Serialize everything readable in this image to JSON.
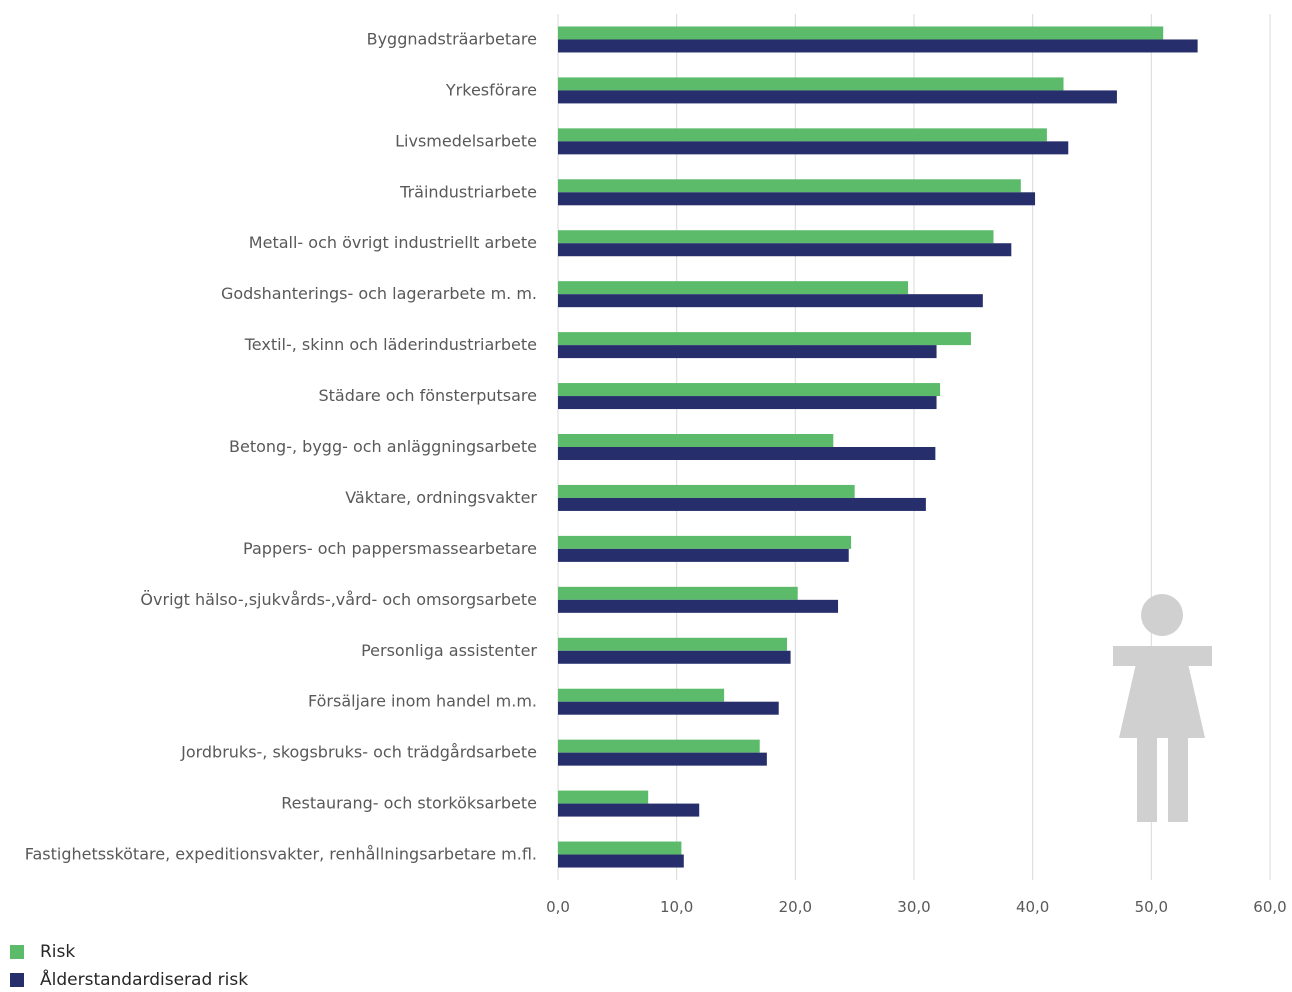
{
  "chart_data": {
    "type": "bar",
    "orientation": "horizontal",
    "categories": [
      "Byggnadsträarbetare",
      "Yrkesförare",
      "Livsmedelsarbete",
      "Träindustriarbete",
      "Metall- och övrigt industriellt arbete",
      "Godshanterings- och lagerarbete m. m.",
      "Textil-, skinn och läderindustriarbete",
      "Städare och fönsterputsare",
      "Betong-, bygg- och anläggningsarbete",
      "Väktare, ordningsvakter",
      "Pappers- och pappersmassearbetare",
      "Övrigt hälso-,sjukvårds-,vård- och omsorgsarbete",
      "Personliga assistenter",
      "Försäljare inom handel m.m.",
      "Jordbruks-, skogsbruks- och trädgårdsarbete",
      "Restaurang- och storköksarbete",
      "Fastighetsskötare, expeditionsvakter, renhållningsarbetare m.fl."
    ],
    "series": [
      {
        "name": "Risk",
        "color": "#5cbb6b",
        "values": [
          51.0,
          42.6,
          41.2,
          39.0,
          36.7,
          29.5,
          34.8,
          32.2,
          23.2,
          25.0,
          24.7,
          20.2,
          19.3,
          14.0,
          17.0,
          7.6,
          10.4
        ]
      },
      {
        "name": "Ålderstandardiserad risk",
        "color": "#262e6b",
        "values": [
          53.9,
          47.1,
          43.0,
          40.2,
          38.2,
          35.8,
          31.9,
          31.9,
          31.8,
          31.0,
          24.5,
          23.6,
          19.6,
          18.6,
          17.6,
          11.9,
          10.6
        ]
      }
    ],
    "xlim": [
      0,
      60
    ],
    "xticks": [
      "0,0",
      "10,0",
      "20,0",
      "30,0",
      "40,0",
      "50,0",
      "60,0"
    ],
    "grid": "vertical",
    "legend": "bottom-left",
    "xlabel": "",
    "ylabel": "",
    "title": ""
  },
  "icon": {
    "name": "female-figure-icon",
    "color": "#d0d0d0"
  },
  "colors": {
    "grid": "#d9d9d9",
    "text": "#595959"
  }
}
